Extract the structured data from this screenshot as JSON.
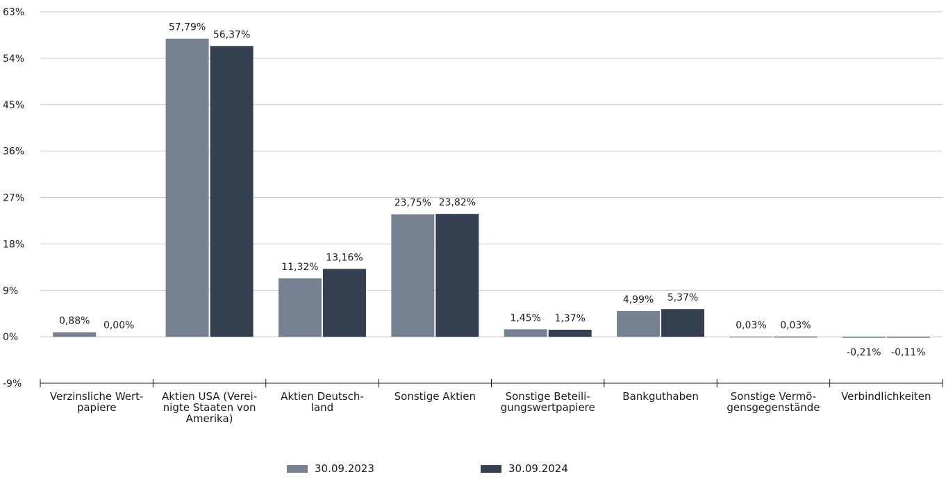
{
  "chart_data": {
    "type": "bar",
    "categories": [
      [
        "Verzinsliche Wert-",
        "papiere"
      ],
      [
        "Aktien USA (Verei-",
        "nigte Staaten von",
        "Amerika)"
      ],
      [
        "Aktien Deutsch-",
        "land"
      ],
      [
        "Sonstige Aktien"
      ],
      [
        "Sonstige Beteili-",
        "gungswertpapiere"
      ],
      [
        "Bankguthaben"
      ],
      [
        "Sonstige Vermö-",
        "gensgegenstände"
      ],
      [
        "Verbindlichkeiten"
      ]
    ],
    "series": [
      {
        "name": "30.09.2023",
        "color": "#768291",
        "values": [
          0.88,
          57.79,
          11.32,
          23.75,
          1.45,
          4.99,
          0.03,
          -0.21
        ],
        "labels": [
          "0,88%",
          "57,79%",
          "11,32%",
          "23,75%",
          "1,45%",
          "4,99%",
          "0,03%",
          "-0,21%"
        ]
      },
      {
        "name": "30.09.2024",
        "color": "#344050",
        "values": [
          0.0,
          56.37,
          13.16,
          23.82,
          1.37,
          5.37,
          0.03,
          -0.11
        ],
        "labels": [
          "0,00%",
          "56,37%",
          "13,16%",
          "23,82%",
          "1,37%",
          "5,37%",
          "0,03%",
          "-0,11%"
        ]
      }
    ],
    "yticks": [
      "63%",
      "54%",
      "45%",
      "36%",
      "27%",
      "18%",
      "9%",
      "0%",
      "-9%"
    ],
    "ytick_values": [
      63,
      54,
      45,
      36,
      27,
      18,
      9,
      0,
      -9
    ],
    "ylim": [
      -9,
      63
    ],
    "grid": true,
    "legend_position": "bottom-center"
  }
}
